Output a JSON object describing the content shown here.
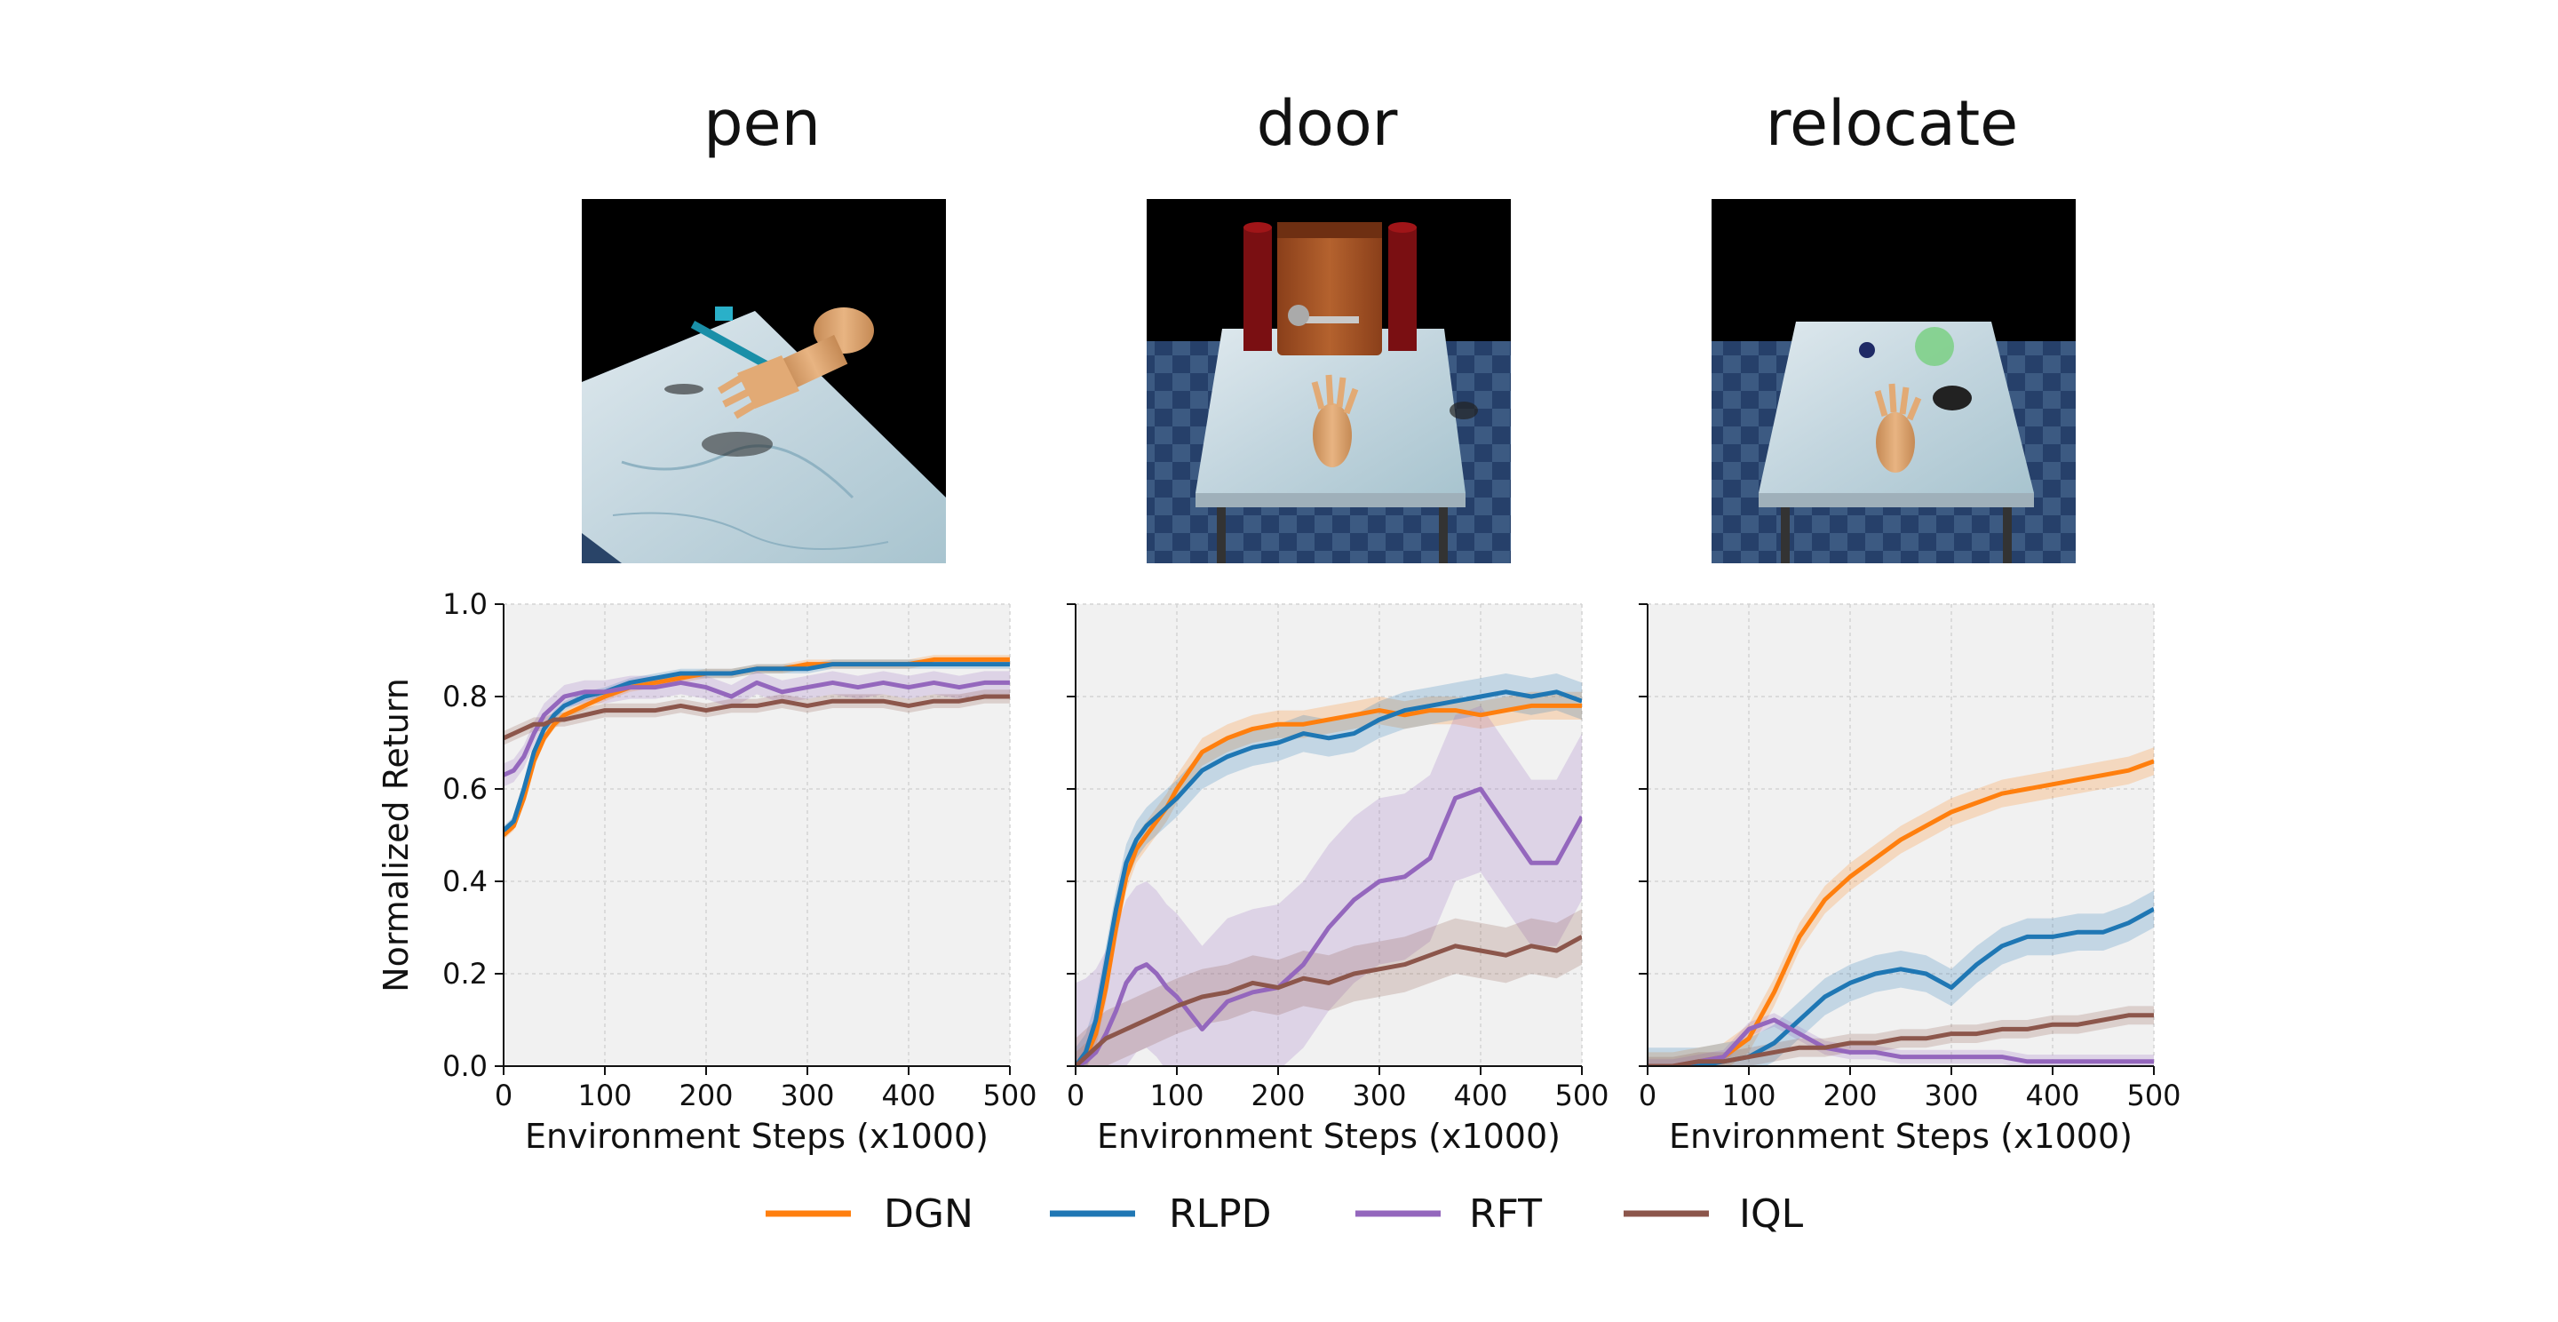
{
  "scene_titles": [
    "pen",
    "door",
    "relocate"
  ],
  "legend": [
    {
      "name": "DGN",
      "color": "#ff7f0e"
    },
    {
      "name": "RLPD",
      "color": "#1f77b4"
    },
    {
      "name": "RFT",
      "color": "#9467bd"
    },
    {
      "name": "IQL",
      "color": "#8c564b"
    }
  ],
  "chart_data": [
    {
      "type": "line",
      "title": "pen",
      "xlabel": "Environment Steps (x1000)",
      "ylabel": "Normalized Return",
      "xlim": [
        0,
        500
      ],
      "ylim": [
        0.0,
        1.0
      ],
      "xticks": [
        "0",
        "100",
        "200",
        "300",
        "400",
        "500"
      ],
      "yticks": [
        "0.0",
        "0.2",
        "0.4",
        "0.6",
        "0.8",
        "1.0"
      ],
      "grid": true,
      "x": [
        0,
        10,
        20,
        30,
        40,
        50,
        60,
        80,
        100,
        125,
        150,
        175,
        200,
        225,
        250,
        275,
        300,
        325,
        350,
        375,
        400,
        425,
        450,
        475,
        500
      ],
      "series": [
        {
          "name": "DGN",
          "color": "#ff7f0e",
          "band": 0.01,
          "values": [
            0.5,
            0.52,
            0.58,
            0.66,
            0.71,
            0.74,
            0.76,
            0.78,
            0.8,
            0.82,
            0.83,
            0.84,
            0.85,
            0.85,
            0.86,
            0.86,
            0.87,
            0.87,
            0.87,
            0.87,
            0.87,
            0.88,
            0.88,
            0.88,
            0.88
          ]
        },
        {
          "name": "RLPD",
          "color": "#1f77b4",
          "band": 0.01,
          "values": [
            0.51,
            0.53,
            0.6,
            0.68,
            0.73,
            0.76,
            0.78,
            0.8,
            0.81,
            0.83,
            0.84,
            0.85,
            0.85,
            0.85,
            0.86,
            0.86,
            0.86,
            0.87,
            0.87,
            0.87,
            0.87,
            0.87,
            0.87,
            0.87,
            0.87
          ]
        },
        {
          "name": "RFT",
          "color": "#9467bd",
          "band": 0.025,
          "values": [
            0.63,
            0.64,
            0.67,
            0.72,
            0.76,
            0.78,
            0.8,
            0.81,
            0.81,
            0.82,
            0.82,
            0.83,
            0.82,
            0.8,
            0.83,
            0.81,
            0.82,
            0.83,
            0.82,
            0.83,
            0.82,
            0.83,
            0.82,
            0.83,
            0.83
          ]
        },
        {
          "name": "IQL",
          "color": "#8c564b",
          "band": 0.015,
          "values": [
            0.71,
            0.72,
            0.73,
            0.74,
            0.74,
            0.75,
            0.75,
            0.76,
            0.77,
            0.77,
            0.77,
            0.78,
            0.77,
            0.78,
            0.78,
            0.79,
            0.78,
            0.79,
            0.79,
            0.79,
            0.78,
            0.79,
            0.79,
            0.8,
            0.8
          ]
        }
      ]
    },
    {
      "type": "line",
      "title": "door",
      "xlabel": "Environment Steps (x1000)",
      "ylabel": "",
      "xlim": [
        0,
        500
      ],
      "ylim": [
        0.0,
        1.0
      ],
      "xticks": [
        "0",
        "100",
        "200",
        "300",
        "400",
        "500"
      ],
      "yticks": [
        "0.0",
        "0.2",
        "0.4",
        "0.6",
        "0.8",
        "1.0"
      ],
      "grid": true,
      "x": [
        0,
        10,
        20,
        30,
        40,
        50,
        60,
        70,
        80,
        90,
        100,
        125,
        150,
        175,
        200,
        225,
        250,
        275,
        300,
        325,
        350,
        375,
        400,
        425,
        450,
        475,
        500
      ],
      "series": [
        {
          "name": "DGN",
          "color": "#ff7f0e",
          "band": 0.03,
          "values": [
            0.0,
            0.02,
            0.07,
            0.17,
            0.3,
            0.41,
            0.47,
            0.5,
            0.53,
            0.56,
            0.6,
            0.68,
            0.71,
            0.73,
            0.74,
            0.74,
            0.75,
            0.76,
            0.77,
            0.76,
            0.77,
            0.77,
            0.76,
            0.77,
            0.78,
            0.78,
            0.78
          ]
        },
        {
          "name": "RLPD",
          "color": "#1f77b4",
          "band": 0.04,
          "values": [
            0.0,
            0.03,
            0.1,
            0.22,
            0.34,
            0.44,
            0.49,
            0.52,
            0.54,
            0.56,
            0.58,
            0.64,
            0.67,
            0.69,
            0.7,
            0.72,
            0.71,
            0.72,
            0.75,
            0.77,
            0.78,
            0.79,
            0.8,
            0.81,
            0.8,
            0.81,
            0.79
          ]
        },
        {
          "name": "RFT",
          "color": "#9467bd",
          "band": 0.18,
          "values": [
            0.0,
            0.01,
            0.03,
            0.07,
            0.12,
            0.18,
            0.21,
            0.22,
            0.2,
            0.17,
            0.15,
            0.08,
            0.14,
            0.16,
            0.17,
            0.22,
            0.3,
            0.36,
            0.4,
            0.41,
            0.45,
            0.58,
            0.6,
            0.52,
            0.44,
            0.44,
            0.54
          ]
        },
        {
          "name": "IQL",
          "color": "#8c564b",
          "band": 0.06,
          "values": [
            0.0,
            0.02,
            0.04,
            0.06,
            0.07,
            0.08,
            0.09,
            0.1,
            0.11,
            0.12,
            0.13,
            0.15,
            0.16,
            0.18,
            0.17,
            0.19,
            0.18,
            0.2,
            0.21,
            0.22,
            0.24,
            0.26,
            0.25,
            0.24,
            0.26,
            0.25,
            0.28
          ]
        }
      ]
    },
    {
      "type": "line",
      "title": "relocate",
      "xlabel": "Environment Steps (x1000)",
      "ylabel": "",
      "xlim": [
        0,
        500
      ],
      "ylim": [
        0.0,
        1.0
      ],
      "xticks": [
        "0",
        "100",
        "200",
        "300",
        "400",
        "500"
      ],
      "yticks": [
        "0.0",
        "0.2",
        "0.4",
        "0.6",
        "0.8",
        "1.0"
      ],
      "grid": true,
      "x": [
        0,
        25,
        50,
        75,
        100,
        125,
        150,
        175,
        200,
        225,
        250,
        275,
        300,
        325,
        350,
        375,
        400,
        425,
        450,
        475,
        500
      ],
      "series": [
        {
          "name": "DGN",
          "color": "#ff7f0e",
          "band": 0.03,
          "values": [
            0.0,
            0.0,
            0.01,
            0.02,
            0.06,
            0.16,
            0.28,
            0.36,
            0.41,
            0.45,
            0.49,
            0.52,
            0.55,
            0.57,
            0.59,
            0.6,
            0.61,
            0.62,
            0.63,
            0.64,
            0.66
          ]
        },
        {
          "name": "RLPD",
          "color": "#1f77b4",
          "band": 0.04,
          "values": [
            0.0,
            0.0,
            0.0,
            0.01,
            0.02,
            0.05,
            0.1,
            0.15,
            0.18,
            0.2,
            0.21,
            0.2,
            0.17,
            0.22,
            0.26,
            0.28,
            0.28,
            0.29,
            0.29,
            0.31,
            0.34
          ]
        },
        {
          "name": "RFT",
          "color": "#9467bd",
          "band": 0.015,
          "values": [
            0.0,
            0.0,
            0.01,
            0.02,
            0.08,
            0.1,
            0.07,
            0.04,
            0.03,
            0.03,
            0.02,
            0.02,
            0.02,
            0.02,
            0.02,
            0.01,
            0.01,
            0.01,
            0.01,
            0.01,
            0.01
          ]
        },
        {
          "name": "IQL",
          "color": "#8c564b",
          "band": 0.02,
          "values": [
            0.0,
            0.0,
            0.01,
            0.01,
            0.02,
            0.03,
            0.04,
            0.04,
            0.05,
            0.05,
            0.06,
            0.06,
            0.07,
            0.07,
            0.08,
            0.08,
            0.09,
            0.09,
            0.1,
            0.11,
            0.11
          ]
        }
      ]
    }
  ]
}
